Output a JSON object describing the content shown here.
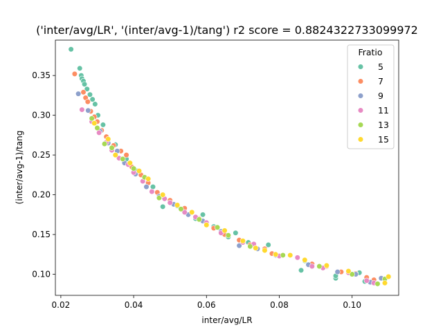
{
  "chart_data": {
    "type": "scatter",
    "title": "('inter/avg/LR', '(inter/avg-1)/tang') r2 score = 0.8824322733099972",
    "xlabel": "inter/avg/LR",
    "ylabel": "(inter/avg-1)/tang",
    "xlim": [
      0.0185,
      0.1128
    ],
    "ylim": [
      0.0735,
      0.3945
    ],
    "xticks": [
      0.02,
      0.04,
      0.06,
      0.08,
      0.1
    ],
    "xtick_labels": [
      "0.02",
      "0.04",
      "0.06",
      "0.08",
      "0.10"
    ],
    "yticks": [
      0.1,
      0.15,
      0.2,
      0.25,
      0.3,
      0.35
    ],
    "ytick_labels": [
      "0.10",
      "0.15",
      "0.20",
      "0.25",
      "0.30",
      "0.35"
    ],
    "grid": false,
    "legend": {
      "title": "Fratio",
      "placement": "top-right"
    },
    "series": [
      {
        "name": "5",
        "color": "#66c2a5",
        "points": [
          [
            0.0228,
            0.383
          ],
          [
            0.0252,
            0.359
          ],
          [
            0.0256,
            0.35
          ],
          [
            0.0258,
            0.346
          ],
          [
            0.0262,
            0.343
          ],
          [
            0.0265,
            0.339
          ],
          [
            0.0272,
            0.333
          ],
          [
            0.028,
            0.326
          ],
          [
            0.0287,
            0.32
          ],
          [
            0.0294,
            0.314
          ],
          [
            0.0302,
            0.3
          ],
          [
            0.0316,
            0.288
          ],
          [
            0.033,
            0.27
          ],
          [
            0.035,
            0.263
          ],
          [
            0.038,
            0.245
          ],
          [
            0.041,
            0.23
          ],
          [
            0.0453,
            0.21
          ],
          [
            0.048,
            0.185
          ],
          [
            0.052,
            0.186
          ],
          [
            0.057,
            0.17
          ],
          [
            0.059,
            0.175
          ],
          [
            0.062,
            0.16
          ],
          [
            0.066,
            0.147
          ],
          [
            0.068,
            0.152
          ],
          [
            0.0715,
            0.14
          ],
          [
            0.077,
            0.137
          ],
          [
            0.086,
            0.105
          ],
          [
            0.087,
            0.117
          ],
          [
            0.0955,
            0.095
          ],
          [
            0.0955,
            0.098
          ],
          [
            0.102,
            0.102
          ],
          [
            0.1035,
            0.091
          ]
        ]
      },
      {
        "name": "7",
        "color": "#fc8d62",
        "points": [
          [
            0.0238,
            0.352
          ],
          [
            0.0262,
            0.329
          ],
          [
            0.0268,
            0.322
          ],
          [
            0.0274,
            0.317
          ],
          [
            0.0282,
            0.305
          ],
          [
            0.0292,
            0.298
          ],
          [
            0.03,
            0.292
          ],
          [
            0.0312,
            0.281
          ],
          [
            0.0325,
            0.273
          ],
          [
            0.0345,
            0.262
          ],
          [
            0.0365,
            0.255
          ],
          [
            0.038,
            0.25
          ],
          [
            0.0395,
            0.235
          ],
          [
            0.042,
            0.225
          ],
          [
            0.044,
            0.215
          ],
          [
            0.0465,
            0.203
          ],
          [
            0.05,
            0.193
          ],
          [
            0.054,
            0.183
          ],
          [
            0.058,
            0.17
          ],
          [
            0.062,
            0.158
          ],
          [
            0.065,
            0.15
          ],
          [
            0.069,
            0.143
          ],
          [
            0.072,
            0.137
          ],
          [
            0.076,
            0.132
          ],
          [
            0.078,
            0.126
          ],
          [
            0.089,
            0.113
          ],
          [
            0.093,
            0.11
          ],
          [
            0.097,
            0.103
          ],
          [
            0.101,
            0.101
          ],
          [
            0.104,
            0.096
          ],
          [
            0.106,
            0.093
          ]
        ]
      },
      {
        "name": "9",
        "color": "#8da0cb",
        "points": [
          [
            0.0248,
            0.327
          ],
          [
            0.0275,
            0.306
          ],
          [
            0.0308,
            0.28
          ],
          [
            0.033,
            0.265
          ],
          [
            0.0355,
            0.255
          ],
          [
            0.0375,
            0.24
          ],
          [
            0.0405,
            0.226
          ],
          [
            0.0435,
            0.21
          ],
          [
            0.047,
            0.198
          ],
          [
            0.051,
            0.188
          ],
          [
            0.055,
            0.175
          ],
          [
            0.059,
            0.167
          ],
          [
            0.064,
            0.154
          ],
          [
            0.069,
            0.136
          ],
          [
            0.074,
            0.132
          ],
          [
            0.079,
            0.124
          ],
          [
            0.088,
            0.112
          ],
          [
            0.096,
            0.103
          ],
          [
            0.101,
            0.1
          ],
          [
            0.105,
            0.09
          ],
          [
            0.108,
            0.095
          ]
        ]
      },
      {
        "name": "11",
        "color": "#e78ac3",
        "points": [
          [
            0.0258,
            0.307
          ],
          [
            0.0285,
            0.292
          ],
          [
            0.0305,
            0.278
          ],
          [
            0.0325,
            0.266
          ],
          [
            0.034,
            0.256
          ],
          [
            0.036,
            0.246
          ],
          [
            0.0385,
            0.238
          ],
          [
            0.04,
            0.228
          ],
          [
            0.0425,
            0.217
          ],
          [
            0.045,
            0.204
          ],
          [
            0.0485,
            0.195
          ],
          [
            0.05,
            0.19
          ],
          [
            0.054,
            0.178
          ],
          [
            0.057,
            0.172
          ],
          [
            0.06,
            0.165
          ],
          [
            0.064,
            0.152
          ],
          [
            0.07,
            0.14
          ],
          [
            0.073,
            0.138
          ],
          [
            0.08,
            0.123
          ],
          [
            0.085,
            0.121
          ],
          [
            0.089,
            0.11
          ],
          [
            0.092,
            0.108
          ],
          [
            0.099,
            0.102
          ],
          [
            0.104,
            0.092
          ],
          [
            0.106,
            0.089
          ]
        ]
      },
      {
        "name": "13",
        "color": "#a6d854",
        "points": [
          [
            0.0285,
            0.296
          ],
          [
            0.03,
            0.284
          ],
          [
            0.032,
            0.264
          ],
          [
            0.034,
            0.259
          ],
          [
            0.037,
            0.245
          ],
          [
            0.04,
            0.233
          ],
          [
            0.043,
            0.222
          ],
          [
            0.047,
            0.196
          ],
          [
            0.053,
            0.182
          ],
          [
            0.058,
            0.169
          ],
          [
            0.063,
            0.159
          ],
          [
            0.066,
            0.149
          ],
          [
            0.072,
            0.135
          ],
          [
            0.081,
            0.124
          ],
          [
            0.091,
            0.11
          ],
          [
            0.1,
            0.1
          ],
          [
            0.107,
            0.088
          ],
          [
            0.109,
            0.094
          ]
        ]
      },
      {
        "name": "15",
        "color": "#ffd92f",
        "points": [
          [
            0.0292,
            0.29
          ],
          [
            0.033,
            0.27
          ],
          [
            0.035,
            0.25
          ],
          [
            0.039,
            0.24
          ],
          [
            0.0415,
            0.23
          ],
          [
            0.044,
            0.22
          ],
          [
            0.048,
            0.2
          ],
          [
            0.052,
            0.187
          ],
          [
            0.056,
            0.178
          ],
          [
            0.06,
            0.162
          ],
          [
            0.065,
            0.155
          ],
          [
            0.07,
            0.142
          ],
          [
            0.0735,
            0.133
          ],
          [
            0.076,
            0.13
          ],
          [
            0.079,
            0.125
          ],
          [
            0.083,
            0.124
          ],
          [
            0.087,
            0.118
          ],
          [
            0.093,
            0.111
          ],
          [
            0.099,
            0.104
          ],
          [
            0.109,
            0.089
          ],
          [
            0.11,
            0.097
          ]
        ]
      }
    ]
  }
}
